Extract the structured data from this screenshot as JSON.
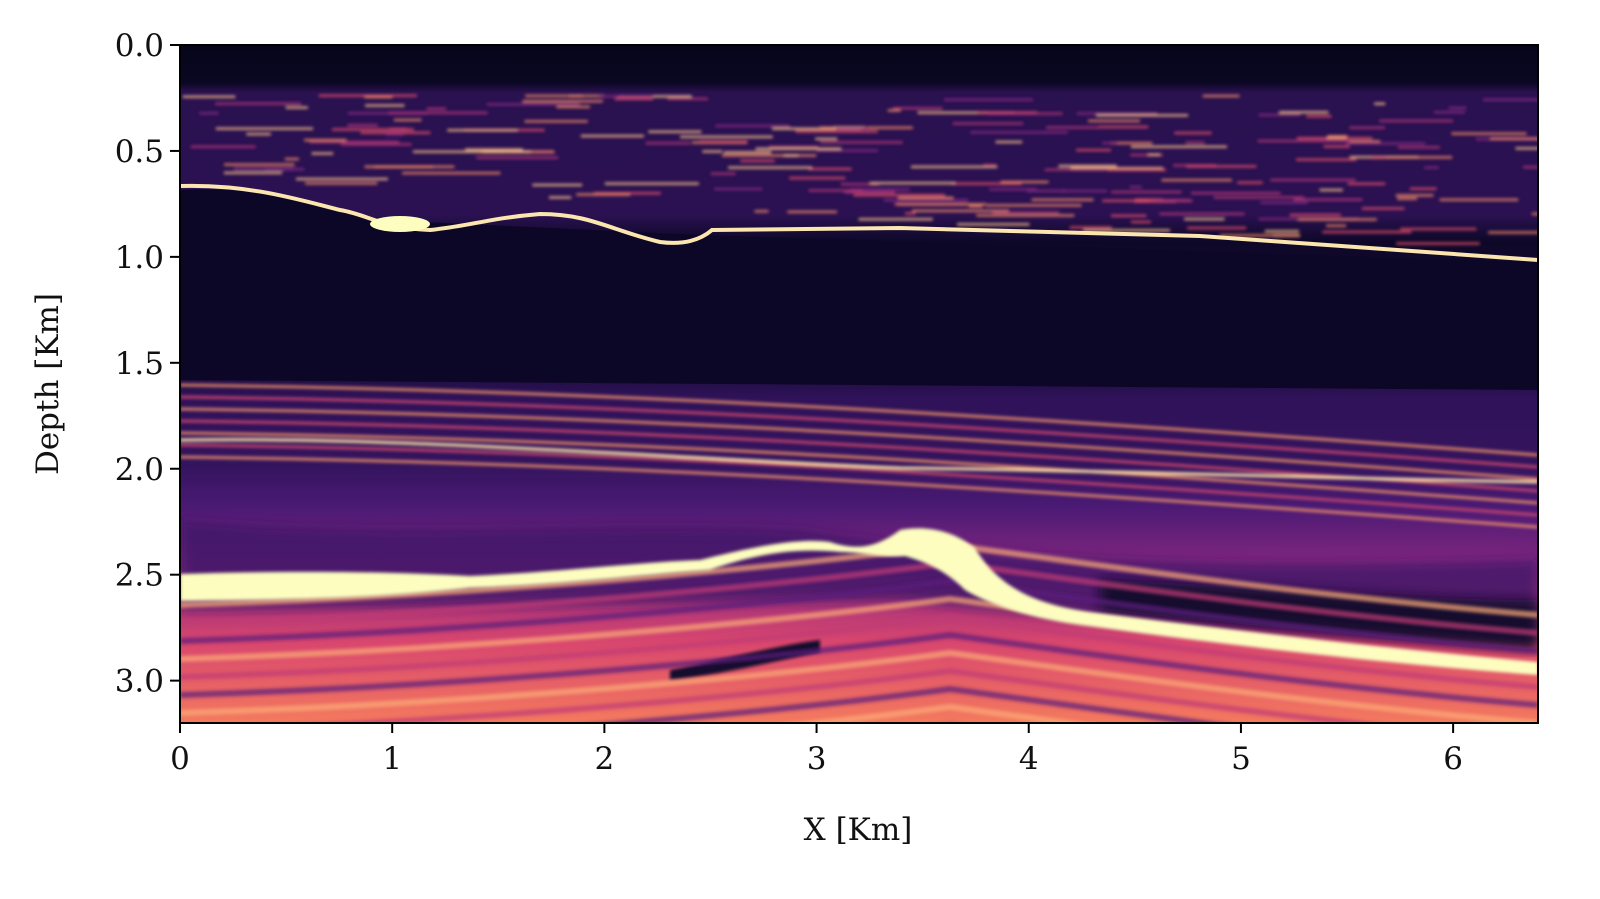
{
  "chart_data": {
    "type": "image",
    "xlabel": "X [Km]",
    "ylabel": "Depth [Km]",
    "xlim": [
      0,
      6.4
    ],
    "xticks": [
      0,
      1,
      2,
      3,
      4,
      5,
      6
    ],
    "ylim": [
      3.2,
      0
    ],
    "yticks": [
      {
        "value": 0,
        "label": "0.0"
      },
      0.5,
      {
        "value": 1,
        "label": "1.0"
      },
      1.5,
      {
        "value": 2,
        "label": "2.0"
      },
      2.5,
      {
        "value": 3,
        "label": "3.0"
      }
    ],
    "colormap": "magma"
  }
}
